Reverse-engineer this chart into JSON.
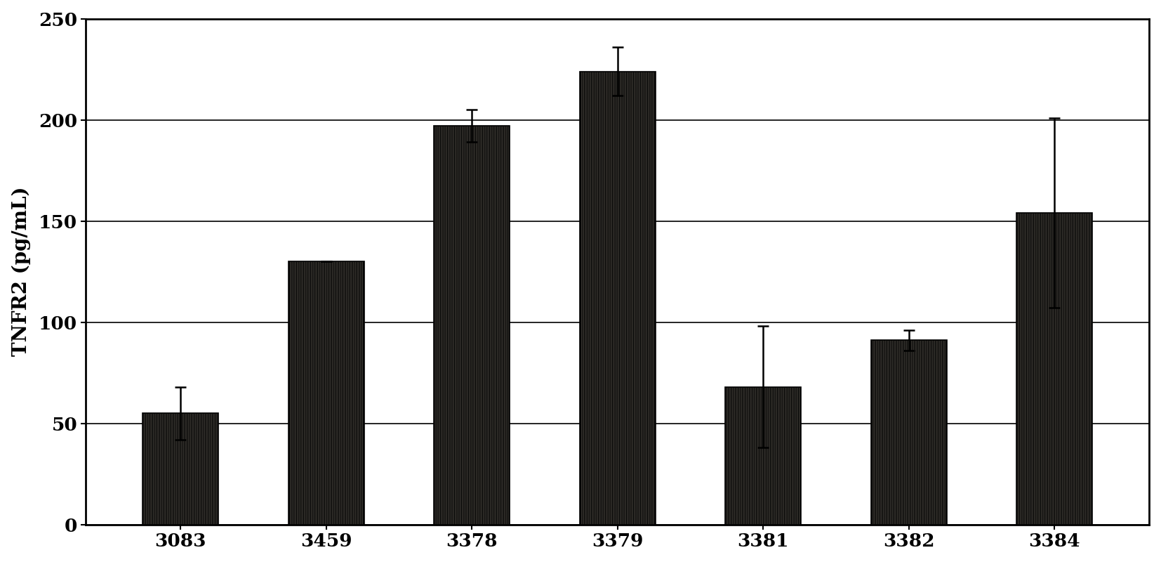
{
  "categories": [
    "3083",
    "3459",
    "3378",
    "3379",
    "3381",
    "3382",
    "3384"
  ],
  "values": [
    55,
    130,
    197,
    224,
    68,
    91,
    154
  ],
  "errors": [
    13,
    0,
    8,
    12,
    30,
    5,
    47
  ],
  "ylabel": "TNFR2 (pg/mL)",
  "ylim": [
    0,
    250
  ],
  "yticks": [
    0,
    50,
    100,
    150,
    200,
    250
  ],
  "bar_color": "#c8c0b0",
  "bar_edgecolor": "#000000",
  "bar_hatch": "||||||||||",
  "error_color": "#000000",
  "background_color": "#ffffff",
  "grid_color": "#000000",
  "label_fontsize": 20,
  "tick_fontsize": 19,
  "bar_width": 0.52,
  "grid_linewidth": 1.2,
  "spine_linewidth": 2.0
}
